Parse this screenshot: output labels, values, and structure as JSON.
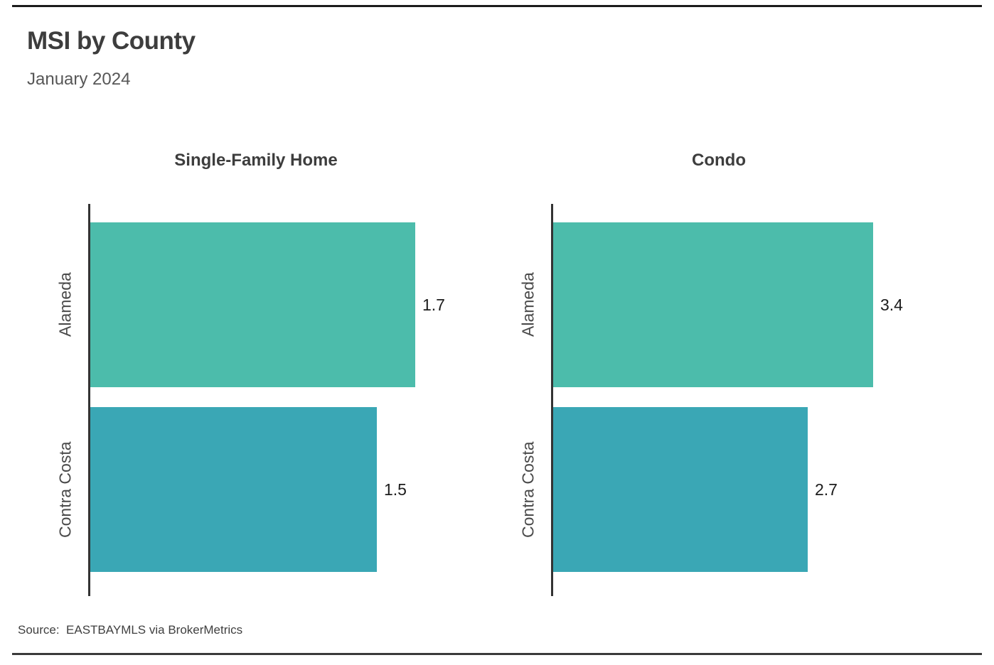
{
  "page": {
    "title": "MSI by County",
    "subtitle": "January 2024",
    "source_note": "Source:  EASTBAYMLS via BrokerMetrics"
  },
  "colors": {
    "bar_alameda": "#4cbcab",
    "bar_contra_costa": "#3aa7b5",
    "axis_line": "#333333",
    "top_rule": "#1b1b1b",
    "bottom_rule": "#3a3a3a",
    "title_text": "#3d3d3d",
    "subtitle_text": "#575757",
    "category_text": "#4a4a4a",
    "value_text": "#1c1c1c"
  },
  "chart_data": [
    {
      "type": "bar",
      "orientation": "horizontal",
      "title": "Single-Family Home",
      "categories": [
        "Alameda",
        "Contra Costa"
      ],
      "values": [
        1.7,
        1.5
      ],
      "value_labels": [
        "1.7",
        "1.5"
      ],
      "bar_colors": [
        "#4cbcab",
        "#3aa7b5"
      ],
      "xlim": [
        0,
        1.785
      ],
      "grid": false,
      "legend": false
    },
    {
      "type": "bar",
      "orientation": "horizontal",
      "title": "Condo",
      "categories": [
        "Alameda",
        "Contra Costa"
      ],
      "values": [
        3.4,
        2.7
      ],
      "value_labels": [
        "3.4",
        "2.7"
      ],
      "bar_colors": [
        "#4cbcab",
        "#3aa7b5"
      ],
      "xlim": [
        0,
        3.57
      ],
      "grid": false,
      "legend": false
    }
  ]
}
